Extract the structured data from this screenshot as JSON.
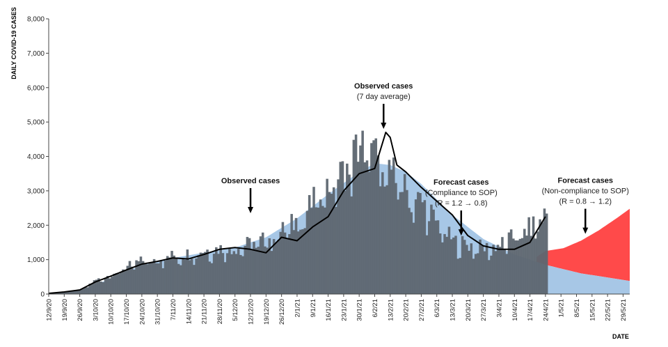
{
  "chart_data": {
    "type": "bar",
    "title": "",
    "ylabel": "DAILY COVID-19 CASES",
    "xlabel": "DATE",
    "ylim": [
      0,
      8000
    ],
    "y_ticks": [
      0,
      1000,
      2000,
      3000,
      4000,
      5000,
      6000,
      7000,
      8000
    ],
    "y_tick_labels": [
      "0",
      "1,000",
      "2,000",
      "3,000",
      "4,000",
      "5,000",
      "6,000",
      "7,000",
      "8,000"
    ],
    "x_tick_labels": [
      "12/9/20",
      "19/9/20",
      "26/9/20",
      "3/10/20",
      "10/10/20",
      "17/10/20",
      "24/10/20",
      "31/10/20",
      "7/11/20",
      "14/11/20",
      "21/11/20",
      "28/11/20",
      "5/12/20",
      "12/12/20",
      "19/12/20",
      "26/12/20",
      "2/1/21",
      "9/1/21",
      "16/1/21",
      "23/1/21",
      "30/1/21",
      "6/2/21",
      "13/2/21",
      "20/2/21",
      "27/2/21",
      "6/3/21",
      "13/3/21",
      "20/3/21",
      "27/3/21",
      "3/4/21",
      "10/4/21",
      "17/4/21",
      "24/4/21",
      "1/5/21",
      "8/5/21",
      "15/5/21",
      "22/5/21",
      "29/5/21"
    ],
    "day_range": [
      0,
      262
    ],
    "series": [
      {
        "name": "Observed cases",
        "kind": "bar",
        "color": "#5d6670",
        "key_days": [
          0,
          7,
          14,
          21,
          28,
          35,
          42,
          49,
          56,
          63,
          70,
          77,
          84,
          91,
          98,
          105,
          112,
          119,
          126,
          133,
          140,
          147,
          154,
          161,
          168,
          175,
          182,
          189,
          196,
          203,
          210,
          217,
          224
        ],
        "key_values": [
          20,
          60,
          120,
          400,
          560,
          780,
          950,
          1000,
          1100,
          1150,
          1250,
          1300,
          1320,
          1450,
          1550,
          1800,
          2100,
          2600,
          3100,
          3500,
          4300,
          3850,
          3500,
          2900,
          2600,
          2000,
          1500,
          1400,
          1300,
          1400,
          1650,
          1900,
          2300
        ]
      },
      {
        "name": "Observed cases (7 day average)",
        "kind": "line",
        "color": "#000000",
        "key_days": [
          0,
          7,
          14,
          21,
          28,
          35,
          42,
          49,
          56,
          63,
          70,
          77,
          84,
          91,
          98,
          105,
          112,
          119,
          126,
          133,
          140,
          147,
          152,
          154,
          157,
          161,
          168,
          175,
          182,
          189,
          196,
          203,
          210,
          217,
          224
        ],
        "key_values": [
          20,
          60,
          120,
          350,
          520,
          700,
          870,
          950,
          1050,
          1020,
          1150,
          1300,
          1350,
          1300,
          1200,
          1650,
          1550,
          1950,
          2250,
          3000,
          3500,
          3650,
          4700,
          4550,
          3750,
          3550,
          3100,
          2700,
          2300,
          1700,
          1400,
          1300,
          1300,
          1500,
          2250
        ]
      },
      {
        "name": "Forecast cases (Compliance to SOP) (R = 1.2 → 0.8)",
        "kind": "area",
        "color": "#a7c7e6",
        "key_days": [
          0,
          14,
          28,
          42,
          56,
          70,
          84,
          98,
          112,
          126,
          140,
          147,
          154,
          161,
          168,
          182,
          196,
          210,
          224,
          240,
          262
        ],
        "key_values": [
          20,
          100,
          450,
          850,
          1050,
          1200,
          1350,
          1650,
          2200,
          2900,
          3550,
          3800,
          3750,
          3550,
          3200,
          2300,
          1600,
          1150,
          850,
          600,
          380
        ]
      },
      {
        "name": "Forecast cases (Non-compliance to SOP) (R = 0.8 → 1.2)",
        "kind": "area",
        "color": "#ff4a4a",
        "key_days": [
          220,
          224,
          232,
          240,
          248,
          256,
          262
        ],
        "key_values": [
          1080,
          1250,
          1330,
          1550,
          1850,
          2200,
          2480
        ]
      }
    ],
    "annotations": [
      {
        "title": "Observed cases",
        "subtitle": "",
        "arrow_day": 91,
        "arrow_value": 2350
      },
      {
        "title": "Observed cases",
        "subtitle": "(7 day average)",
        "arrow_day": 151,
        "arrow_value": 4800
      },
      {
        "title": "Forecast cases",
        "subtitle": "(Compliance to SOP)",
        "subtitle2": "(R = 1.2 → 0.8)",
        "arrow_day": 186,
        "arrow_value": 1700
      },
      {
        "title": "Forecast cases",
        "subtitle": "(Non-compliance to SOP)",
        "subtitle2": "(R = 0.8 → 1.2)",
        "arrow_day": 242,
        "arrow_value": 1750
      }
    ]
  }
}
